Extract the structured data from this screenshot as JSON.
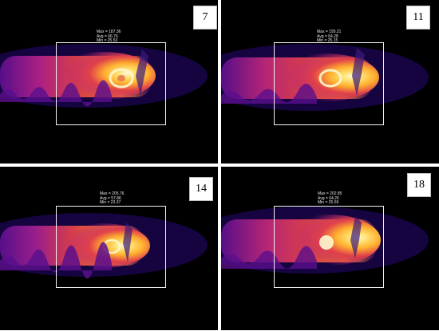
{
  "panels": [
    {
      "label": "7",
      "max": "Max = 187.36",
      "avg": "Avg = 66.76",
      "min": "Min = 25.53"
    },
    {
      "label": "11",
      "max": "Max = 195.21",
      "avg": "Avg = 64.28",
      "min": "Min = 25.15"
    },
    {
      "label": "14",
      "max": "Max = 205.76",
      "avg": "Avg = 57.86",
      "min": "Min = 23.37"
    },
    {
      "label": "18",
      "max": "Max = 202.85",
      "avg": "Avg = 64.26",
      "min": "Min = 25.59"
    }
  ],
  "colors": {
    "background": "#000000",
    "roi_border": "#f2f2f2",
    "palette": [
      "#1a0550",
      "#5a0f8c",
      "#b0208a",
      "#e0404a",
      "#ff7a20",
      "#ffb030",
      "#ffe070",
      "#fff8d0"
    ]
  }
}
